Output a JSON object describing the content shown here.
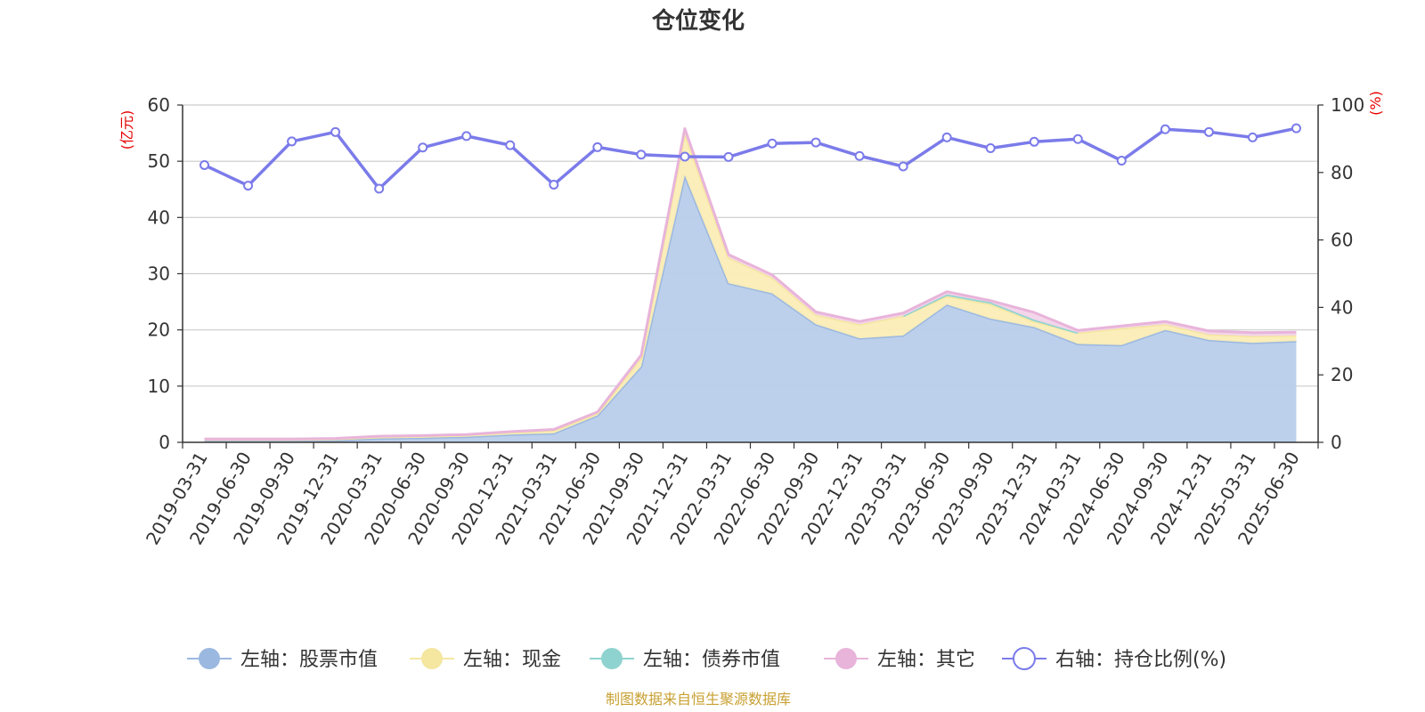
{
  "chart_data": {
    "type": "area",
    "title": "仓位变化",
    "source": "制图数据来自恒生聚源数据库",
    "left_axis": {
      "unit_label": "(亿元)",
      "ylim": [
        0,
        60
      ],
      "ticks": [
        "0",
        "10",
        "20",
        "30",
        "40",
        "50",
        "60"
      ]
    },
    "right_axis": {
      "unit_label": "(%)",
      "ylim": [
        0,
        100
      ],
      "ticks": [
        "0",
        "20",
        "40",
        "60",
        "80",
        "100"
      ]
    },
    "categories": [
      "2019-03-31",
      "2019-06-30",
      "2019-09-30",
      "2019-12-31",
      "2020-03-31",
      "2020-06-30",
      "2020-09-30",
      "2020-12-31",
      "2021-03-31",
      "2021-06-30",
      "2021-09-30",
      "2021-12-31",
      "2022-03-31",
      "2022-06-30",
      "2022-09-30",
      "2022-12-31",
      "2023-03-31",
      "2023-06-30",
      "2023-09-30",
      "2023-12-31",
      "2024-03-31",
      "2024-06-30",
      "2024-09-30",
      "2024-12-31",
      "2025-03-31",
      "2025-06-30"
    ],
    "series": [
      {
        "name": "左轴：股票市值",
        "axis": "left",
        "kind": "stack-area",
        "color": "#9bb8e0",
        "fill": "#b8cdeb",
        "values": [
          0.4,
          0.4,
          0.4,
          0.4,
          0.7,
          0.8,
          1.0,
          1.4,
          1.6,
          4.8,
          13.5,
          47.5,
          28.3,
          26.5,
          21.0,
          18.5,
          19.0,
          24.5,
          22.0,
          20.5,
          17.5,
          17.3,
          20.0,
          18.2,
          17.7,
          18.0
        ]
      },
      {
        "name": "左轴：现金",
        "axis": "left",
        "kind": "stack-area",
        "color": "#f5e6a0",
        "fill": "#fbedb6",
        "values": [
          0.1,
          0.1,
          0.1,
          0.2,
          0.3,
          0.3,
          0.3,
          0.4,
          0.5,
          0.4,
          1.5,
          7.5,
          4.6,
          2.8,
          1.7,
          2.5,
          3.5,
          1.5,
          2.6,
          1.0,
          2.0,
          3.0,
          1.0,
          1.0,
          1.2,
          1.0
        ]
      },
      {
        "name": "左轴：债券市值",
        "axis": "left",
        "kind": "stack-area",
        "color": "#8fd3d0",
        "fill": "#b3e3e0",
        "values": [
          0,
          0,
          0,
          0,
          0,
          0,
          0,
          0,
          0,
          0,
          0,
          0,
          0,
          0,
          0,
          0,
          0,
          0.3,
          0.3,
          0.3,
          0,
          0,
          0,
          0,
          0,
          0
        ]
      },
      {
        "name": "左轴：其它",
        "axis": "left",
        "kind": "stack-area",
        "color": "#e8b4da",
        "fill": "#f3d4e9",
        "values": [
          0.1,
          0.1,
          0.1,
          0.1,
          0.1,
          0.1,
          0.1,
          0.1,
          0.2,
          0.2,
          0.5,
          0.8,
          0.5,
          0.5,
          0.5,
          0.5,
          0.5,
          0.5,
          0.3,
          1.3,
          0.4,
          0.4,
          0.5,
          0.6,
          0.6,
          0.6
        ]
      },
      {
        "name": "右轴：持仓比例(%)",
        "axis": "right",
        "kind": "line",
        "color": "#7b7bea",
        "values": [
          82.2,
          76.1,
          89.2,
          92.0,
          75.2,
          87.4,
          90.8,
          88.1,
          76.4,
          87.5,
          85.3,
          84.7,
          84.6,
          88.6,
          88.9,
          84.9,
          81.8,
          90.4,
          87.2,
          89.1,
          89.9,
          83.5,
          92.8,
          92.0,
          90.4,
          93.1
        ]
      }
    ],
    "grid": true,
    "legend_position": "bottom"
  }
}
